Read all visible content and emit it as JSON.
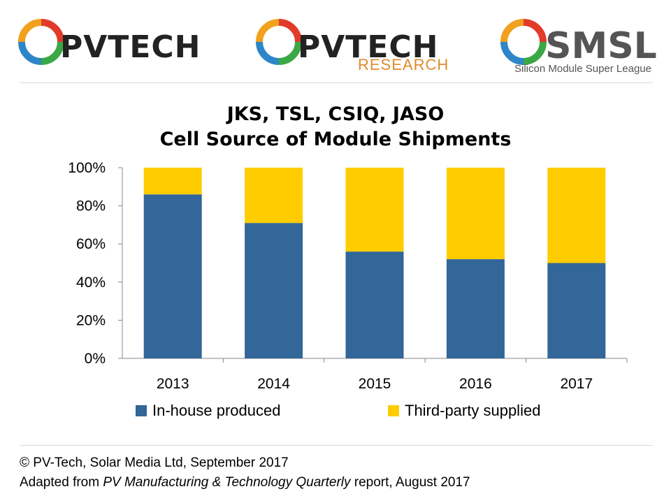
{
  "logos": [
    {
      "name": "pvtech-logo",
      "text": "PVTECH",
      "sub": ""
    },
    {
      "name": "pvtech-research-logo",
      "text": "PVTECH",
      "sub": "RESEARCH"
    },
    {
      "name": "smsl-logo",
      "text": "SMSL",
      "sub": "Silicon Module Super League"
    }
  ],
  "chart_data": {
    "type": "bar",
    "stacked": true,
    "title": "JKS, TSL, CSIQ, JASO",
    "subtitle": "Cell Source of Module Shipments",
    "categories": [
      "2013",
      "2014",
      "2015",
      "2016",
      "2017"
    ],
    "series": [
      {
        "name": "In-house produced",
        "color": "#336699",
        "values": [
          86,
          71,
          56,
          52,
          50
        ]
      },
      {
        "name": "Third-party supplied",
        "color": "#ffcc00",
        "values": [
          14,
          29,
          44,
          48,
          50
        ]
      }
    ],
    "ylim": [
      0,
      100
    ],
    "yticks": [
      "0%",
      "20%",
      "40%",
      "60%",
      "80%",
      "100%"
    ],
    "legend_position": "bottom",
    "grid": false
  },
  "footer": {
    "line1": "© PV-Tech, Solar Media Ltd, September 2017",
    "line2_prefix": "Adapted from ",
    "line2_italic": "PV Manufacturing & Technology Quarterly",
    "line2_suffix": " report, August 2017"
  }
}
